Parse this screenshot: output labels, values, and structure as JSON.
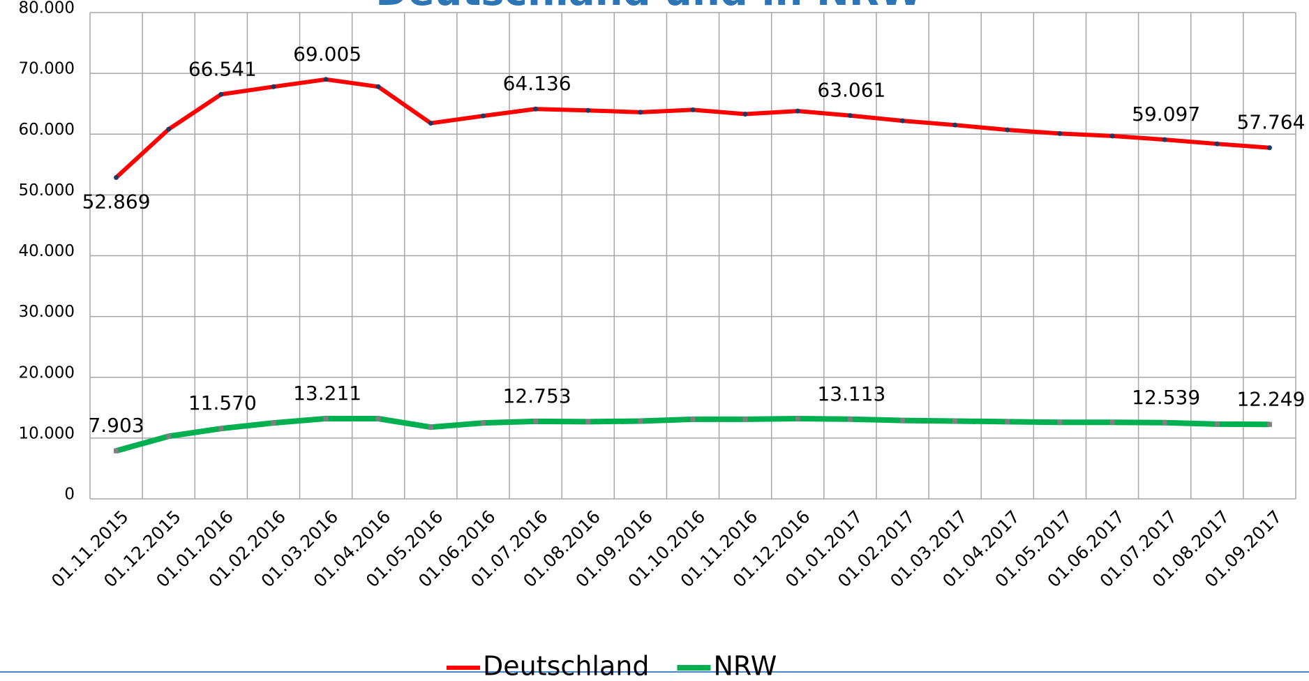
{
  "chart_data": {
    "type": "line",
    "title": "Deutschland und in NRW",
    "categories": [
      "01.11.2015",
      "01.12.2015",
      "01.01.2016",
      "01.02.2016",
      "01.03.2016",
      "01.04.2016",
      "01.05.2016",
      "01.06.2016",
      "01.07.2016",
      "01.08.2016",
      "01.09.2016",
      "01.10.2016",
      "01.11.2016",
      "01.12.2016",
      "01.01.2017",
      "01.02.2017",
      "01.03.2017",
      "01.04.2017",
      "01.05.2017",
      "01.06.2017",
      "01.07.2017",
      "01.08.2017",
      "01.09.2017"
    ],
    "series": [
      {
        "name": "Deutschland",
        "color": "#ff0000",
        "values": [
          52869,
          60800,
          66541,
          67800,
          69005,
          67800,
          61800,
          63000,
          64136,
          63900,
          63600,
          64000,
          63300,
          63800,
          63061,
          62200,
          61500,
          60700,
          60100,
          59700,
          59097,
          58400,
          57764
        ],
        "value_labels": [
          "52.869",
          null,
          "66.541",
          null,
          "69.005",
          null,
          null,
          null,
          "64.136",
          null,
          null,
          null,
          null,
          null,
          "63.061",
          null,
          null,
          null,
          null,
          null,
          "59.097",
          null,
          "57.764"
        ]
      },
      {
        "name": "NRW",
        "color": "#00b050",
        "values": [
          7903,
          10300,
          11570,
          12500,
          13211,
          13200,
          11800,
          12500,
          12753,
          12700,
          12800,
          13100,
          13100,
          13200,
          13113,
          12900,
          12800,
          12700,
          12600,
          12600,
          12539,
          12300,
          12249
        ],
        "value_labels": [
          "7.903",
          null,
          "11.570",
          null,
          "13.211",
          null,
          null,
          null,
          "12.753",
          null,
          null,
          null,
          null,
          null,
          "13.113",
          null,
          null,
          null,
          null,
          null,
          "12.539",
          null,
          "12.249"
        ]
      }
    ],
    "ylim": [
      0,
      80000
    ],
    "yticks": [
      0,
      {
        "value": 10000,
        "label": "10.000"
      },
      {
        "value": 20000,
        "label": "20.000"
      },
      {
        "value": 30000,
        "label": "30.000"
      },
      {
        "value": 40000,
        "label": "40.000"
      },
      {
        "value": 50000,
        "label": "50.000"
      },
      {
        "value": 60000,
        "label": "60.000"
      },
      {
        "value": 70000,
        "label": "70.000"
      },
      {
        "value": 80000,
        "label": "80.000"
      }
    ],
    "grid": true,
    "legend": "bottom"
  }
}
